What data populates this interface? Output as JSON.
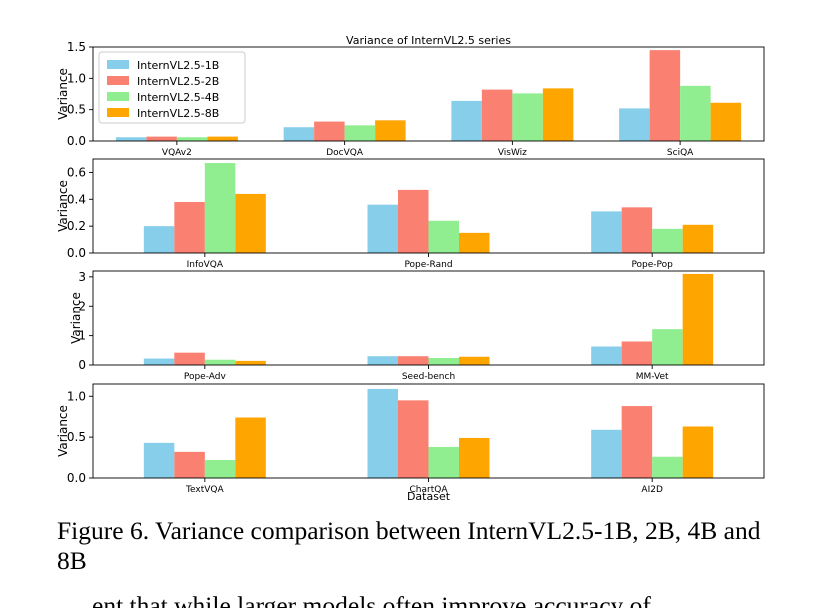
{
  "chart_data": {
    "type": "bar",
    "title": "Variance of InternVL2.5 series",
    "xlabel": "Dataset",
    "ylabel": "Variance",
    "legend_position": "top-left",
    "series_names": [
      "InternVL2.5-1B",
      "InternVL2.5-2B",
      "InternVL2.5-4B",
      "InternVL2.5-8B"
    ],
    "colors": [
      "#87ceeb",
      "#fa8072",
      "#90ee90",
      "#ffa500"
    ],
    "panels": [
      {
        "categories": [
          "VQAv2",
          "DocVQA",
          "VisWiz",
          "SciQA"
        ],
        "ylim": [
          0,
          1.5
        ],
        "yticks": [
          "0.0",
          "0.5",
          "1.0",
          "1.5"
        ],
        "series": [
          {
            "name": "InternVL2.5-1B",
            "values": [
              0.06,
              0.22,
              0.64,
              0.52
            ]
          },
          {
            "name": "InternVL2.5-2B",
            "values": [
              0.07,
              0.31,
              0.82,
              1.45
            ]
          },
          {
            "name": "InternVL2.5-4B",
            "values": [
              0.06,
              0.25,
              0.76,
              0.88
            ]
          },
          {
            "name": "InternVL2.5-8B",
            "values": [
              0.07,
              0.33,
              0.84,
              0.61
            ]
          }
        ]
      },
      {
        "categories": [
          "InfoVQA",
          "Pope-Rand",
          "Pope-Pop"
        ],
        "ylim": [
          0,
          0.7
        ],
        "yticks": [
          "0.0",
          "0.2",
          "0.4",
          "0.6"
        ],
        "series": [
          {
            "name": "InternVL2.5-1B",
            "values": [
              0.2,
              0.36,
              0.31
            ]
          },
          {
            "name": "InternVL2.5-2B",
            "values": [
              0.38,
              0.47,
              0.34
            ]
          },
          {
            "name": "InternVL2.5-4B",
            "values": [
              0.67,
              0.24,
              0.18
            ]
          },
          {
            "name": "InternVL2.5-8B",
            "values": [
              0.44,
              0.15,
              0.21
            ]
          }
        ]
      },
      {
        "categories": [
          "Pope-Adv",
          "Seed-bench",
          "MM-Vet"
        ],
        "ylim": [
          0,
          3.2
        ],
        "yticks": [
          "0",
          "1",
          "2",
          "3"
        ],
        "series": [
          {
            "name": "InternVL2.5-1B",
            "values": [
              0.22,
              0.3,
              0.63
            ]
          },
          {
            "name": "InternVL2.5-2B",
            "values": [
              0.42,
              0.3,
              0.8
            ]
          },
          {
            "name": "InternVL2.5-4B",
            "values": [
              0.18,
              0.24,
              1.22
            ]
          },
          {
            "name": "InternVL2.5-8B",
            "values": [
              0.14,
              0.28,
              3.1
            ]
          }
        ]
      },
      {
        "categories": [
          "TextVQA",
          "ChartQA",
          "AI2D"
        ],
        "ylim": [
          0,
          1.15
        ],
        "yticks": [
          "0.0",
          "0.5",
          "1.0"
        ],
        "series": [
          {
            "name": "InternVL2.5-1B",
            "values": [
              0.43,
              1.09,
              0.59
            ]
          },
          {
            "name": "InternVL2.5-2B",
            "values": [
              0.32,
              0.95,
              0.88
            ]
          },
          {
            "name": "InternVL2.5-4B",
            "values": [
              0.22,
              0.38,
              0.26
            ]
          },
          {
            "name": "InternVL2.5-8B",
            "values": [
              0.74,
              0.49,
              0.63
            ]
          }
        ]
      }
    ]
  },
  "caption": "Figure 6. Variance comparison between InternVL2.5-1B, 2B, 4B and 8B",
  "cutoff_text": "ent that while larger models often improve accuracy of"
}
